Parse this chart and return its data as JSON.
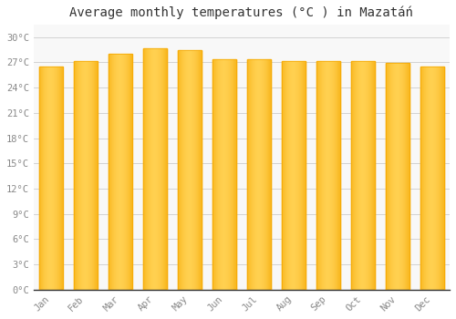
{
  "title": "Average monthly temperatures (°C ) in Mazatáń",
  "months": [
    "Jan",
    "Feb",
    "Mar",
    "Apr",
    "May",
    "Jun",
    "Jul",
    "Aug",
    "Sep",
    "Oct",
    "Nov",
    "Dec"
  ],
  "values": [
    26.5,
    27.1,
    28.0,
    28.7,
    28.5,
    27.4,
    27.4,
    27.2,
    27.2,
    27.2,
    26.9,
    26.5
  ],
  "bar_color_center": "#FFD050",
  "bar_color_edge": "#F5A800",
  "background_color": "#FFFFFF",
  "plot_bg_color": "#F8F8F8",
  "grid_color": "#CCCCCC",
  "ytick_labels": [
    "0°C",
    "3°C",
    "6°C",
    "9°C",
    "12°C",
    "15°C",
    "18°C",
    "21°C",
    "24°C",
    "27°C",
    "30°C"
  ],
  "ytick_values": [
    0,
    3,
    6,
    9,
    12,
    15,
    18,
    21,
    24,
    27,
    30
  ],
  "ylim": [
    0,
    31.5
  ],
  "title_fontsize": 10,
  "tick_fontsize": 7.5,
  "tick_color": "#888888",
  "bar_width": 0.7
}
